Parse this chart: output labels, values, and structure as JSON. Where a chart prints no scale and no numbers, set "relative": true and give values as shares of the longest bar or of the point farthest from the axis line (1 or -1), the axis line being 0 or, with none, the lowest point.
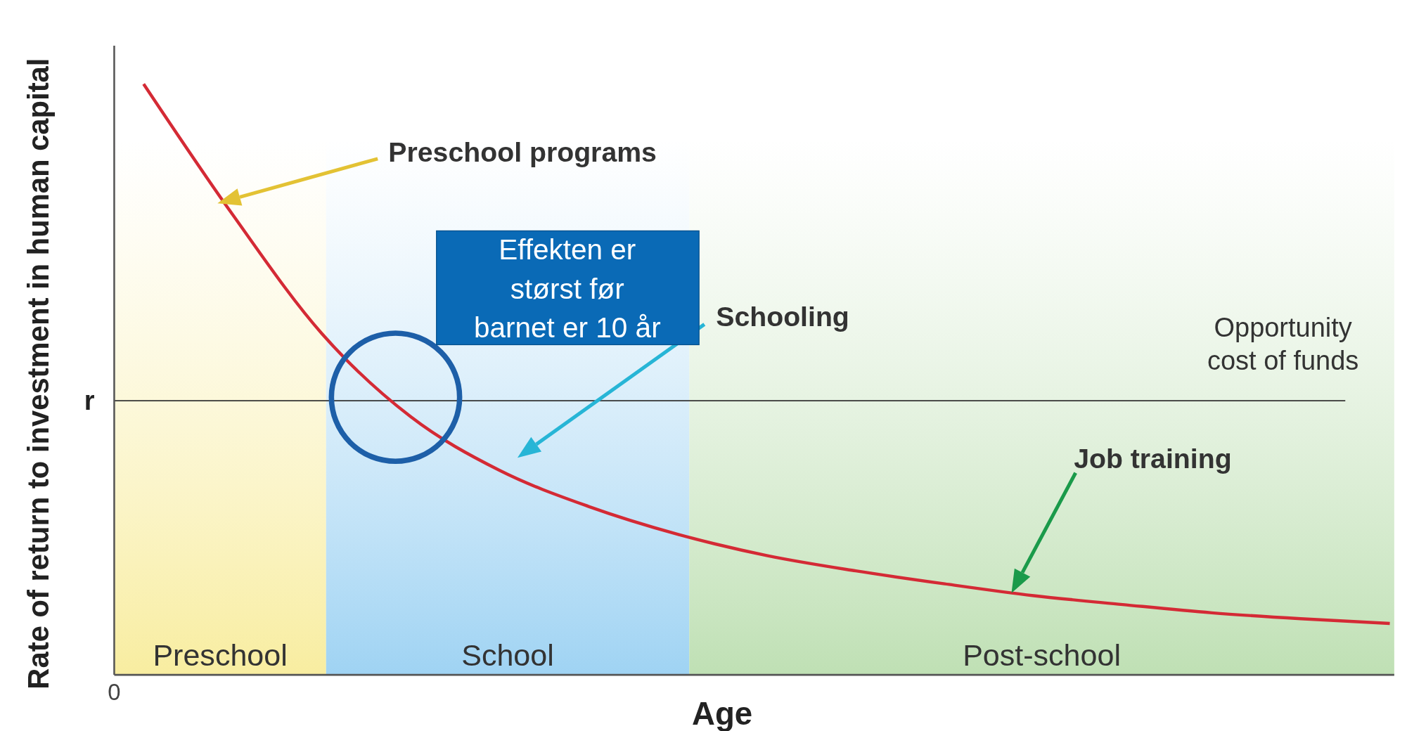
{
  "chart_data": {
    "type": "line",
    "relative": true,
    "xlabel": "Age",
    "ylabel": "Rate of return to investment in human capital",
    "categories": [
      null,
      null,
      null,
      null,
      null,
      null,
      null,
      null,
      null,
      null,
      null,
      null,
      null,
      null,
      null
    ],
    "series": [
      {
        "color": "#d42a35",
        "values": [
          1,
          0.779,
          0.578,
          0.437,
          0.346,
          0.285,
          0.238,
          0.202,
          0.176,
          0.154,
          0.134,
          0.119,
          0.105,
          0.095,
          0.087
        ]
      }
    ],
    "line_style": "solid",
    "marker": "none",
    "ref_lines": [
      {
        "axis": "y",
        "value": 0.464,
        "label": "r",
        "color": "#333333"
      }
    ],
    "annotations": [
      "Preschool programs",
      "Schooling",
      "Job training",
      "Opportunity cost of funds",
      "Effekten er størst før barnet er 10 år",
      "0",
      "Preschool",
      "School",
      "Post-school"
    ]
  }
}
